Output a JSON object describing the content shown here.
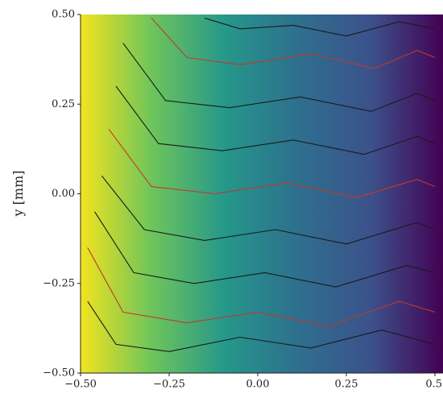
{
  "chart_data": {
    "type": "streamplot",
    "ylabel": "y [mm]",
    "xlim": [
      -0.5,
      0.5
    ],
    "ylim": [
      -0.5,
      0.5
    ],
    "xticks": [
      {
        "value": -0.5,
        "label": "−0.50"
      },
      {
        "value": -0.25,
        "label": "−0.25"
      },
      {
        "value": 0,
        "label": "0.00"
      },
      {
        "value": 0.25,
        "label": "0.25"
      },
      {
        "value": 0.5,
        "label": "0.5"
      }
    ],
    "yticks": [
      {
        "value": -0.5,
        "label": "−0.50"
      },
      {
        "value": -0.25,
        "label": "−0.25"
      },
      {
        "value": 0,
        "label": "0.00"
      },
      {
        "value": 0.25,
        "label": "0.25"
      },
      {
        "value": 0.5,
        "label": "0.50"
      }
    ],
    "colormap": [
      "#f2e41e",
      "#6cc45c",
      "#25978a",
      "#2e6f8e",
      "#3b528b",
      "#440154"
    ],
    "streamlines": [
      {
        "color": "#1a1a1a",
        "x": [
          -0.48,
          -0.4,
          -0.25,
          -0.05,
          0.15,
          0.35,
          0.5
        ],
        "y": [
          -0.3,
          -0.42,
          -0.44,
          -0.4,
          -0.43,
          -0.38,
          -0.42
        ]
      },
      {
        "color": "#c0392b",
        "x": [
          -0.48,
          -0.38,
          -0.2,
          0.0,
          0.2,
          0.4,
          0.5
        ],
        "y": [
          -0.15,
          -0.33,
          -0.36,
          -0.33,
          -0.37,
          -0.3,
          -0.33
        ]
      },
      {
        "color": "#1a1a1a",
        "x": [
          -0.46,
          -0.35,
          -0.18,
          0.02,
          0.22,
          0.42,
          0.5
        ],
        "y": [
          -0.05,
          -0.22,
          -0.25,
          -0.22,
          -0.26,
          -0.2,
          -0.22
        ]
      },
      {
        "color": "#1a1a1a",
        "x": [
          -0.44,
          -0.32,
          -0.15,
          0.05,
          0.25,
          0.45,
          0.5
        ],
        "y": [
          0.05,
          -0.1,
          -0.13,
          -0.1,
          -0.14,
          -0.08,
          -0.1
        ]
      },
      {
        "color": "#c0392b",
        "x": [
          -0.42,
          -0.3,
          -0.12,
          0.08,
          0.28,
          0.45,
          0.5
        ],
        "y": [
          0.18,
          0.02,
          0.0,
          0.03,
          -0.01,
          0.04,
          0.02
        ]
      },
      {
        "color": "#1a1a1a",
        "x": [
          -0.4,
          -0.28,
          -0.1,
          0.1,
          0.3,
          0.45,
          0.5
        ],
        "y": [
          0.3,
          0.14,
          0.12,
          0.15,
          0.11,
          0.16,
          0.14
        ]
      },
      {
        "color": "#1a1a1a",
        "x": [
          -0.38,
          -0.26,
          -0.08,
          0.12,
          0.32,
          0.45,
          0.5
        ],
        "y": [
          0.42,
          0.26,
          0.24,
          0.27,
          0.23,
          0.28,
          0.26
        ]
      },
      {
        "color": "#c0392b",
        "x": [
          -0.3,
          -0.2,
          -0.05,
          0.15,
          0.33,
          0.45,
          0.5
        ],
        "y": [
          0.49,
          0.38,
          0.36,
          0.39,
          0.35,
          0.4,
          0.38
        ]
      },
      {
        "color": "#1a1a1a",
        "x": [
          -0.15,
          -0.05,
          0.1,
          0.25,
          0.4,
          0.5
        ],
        "y": [
          0.49,
          0.46,
          0.47,
          0.44,
          0.48,
          0.46
        ]
      }
    ]
  }
}
